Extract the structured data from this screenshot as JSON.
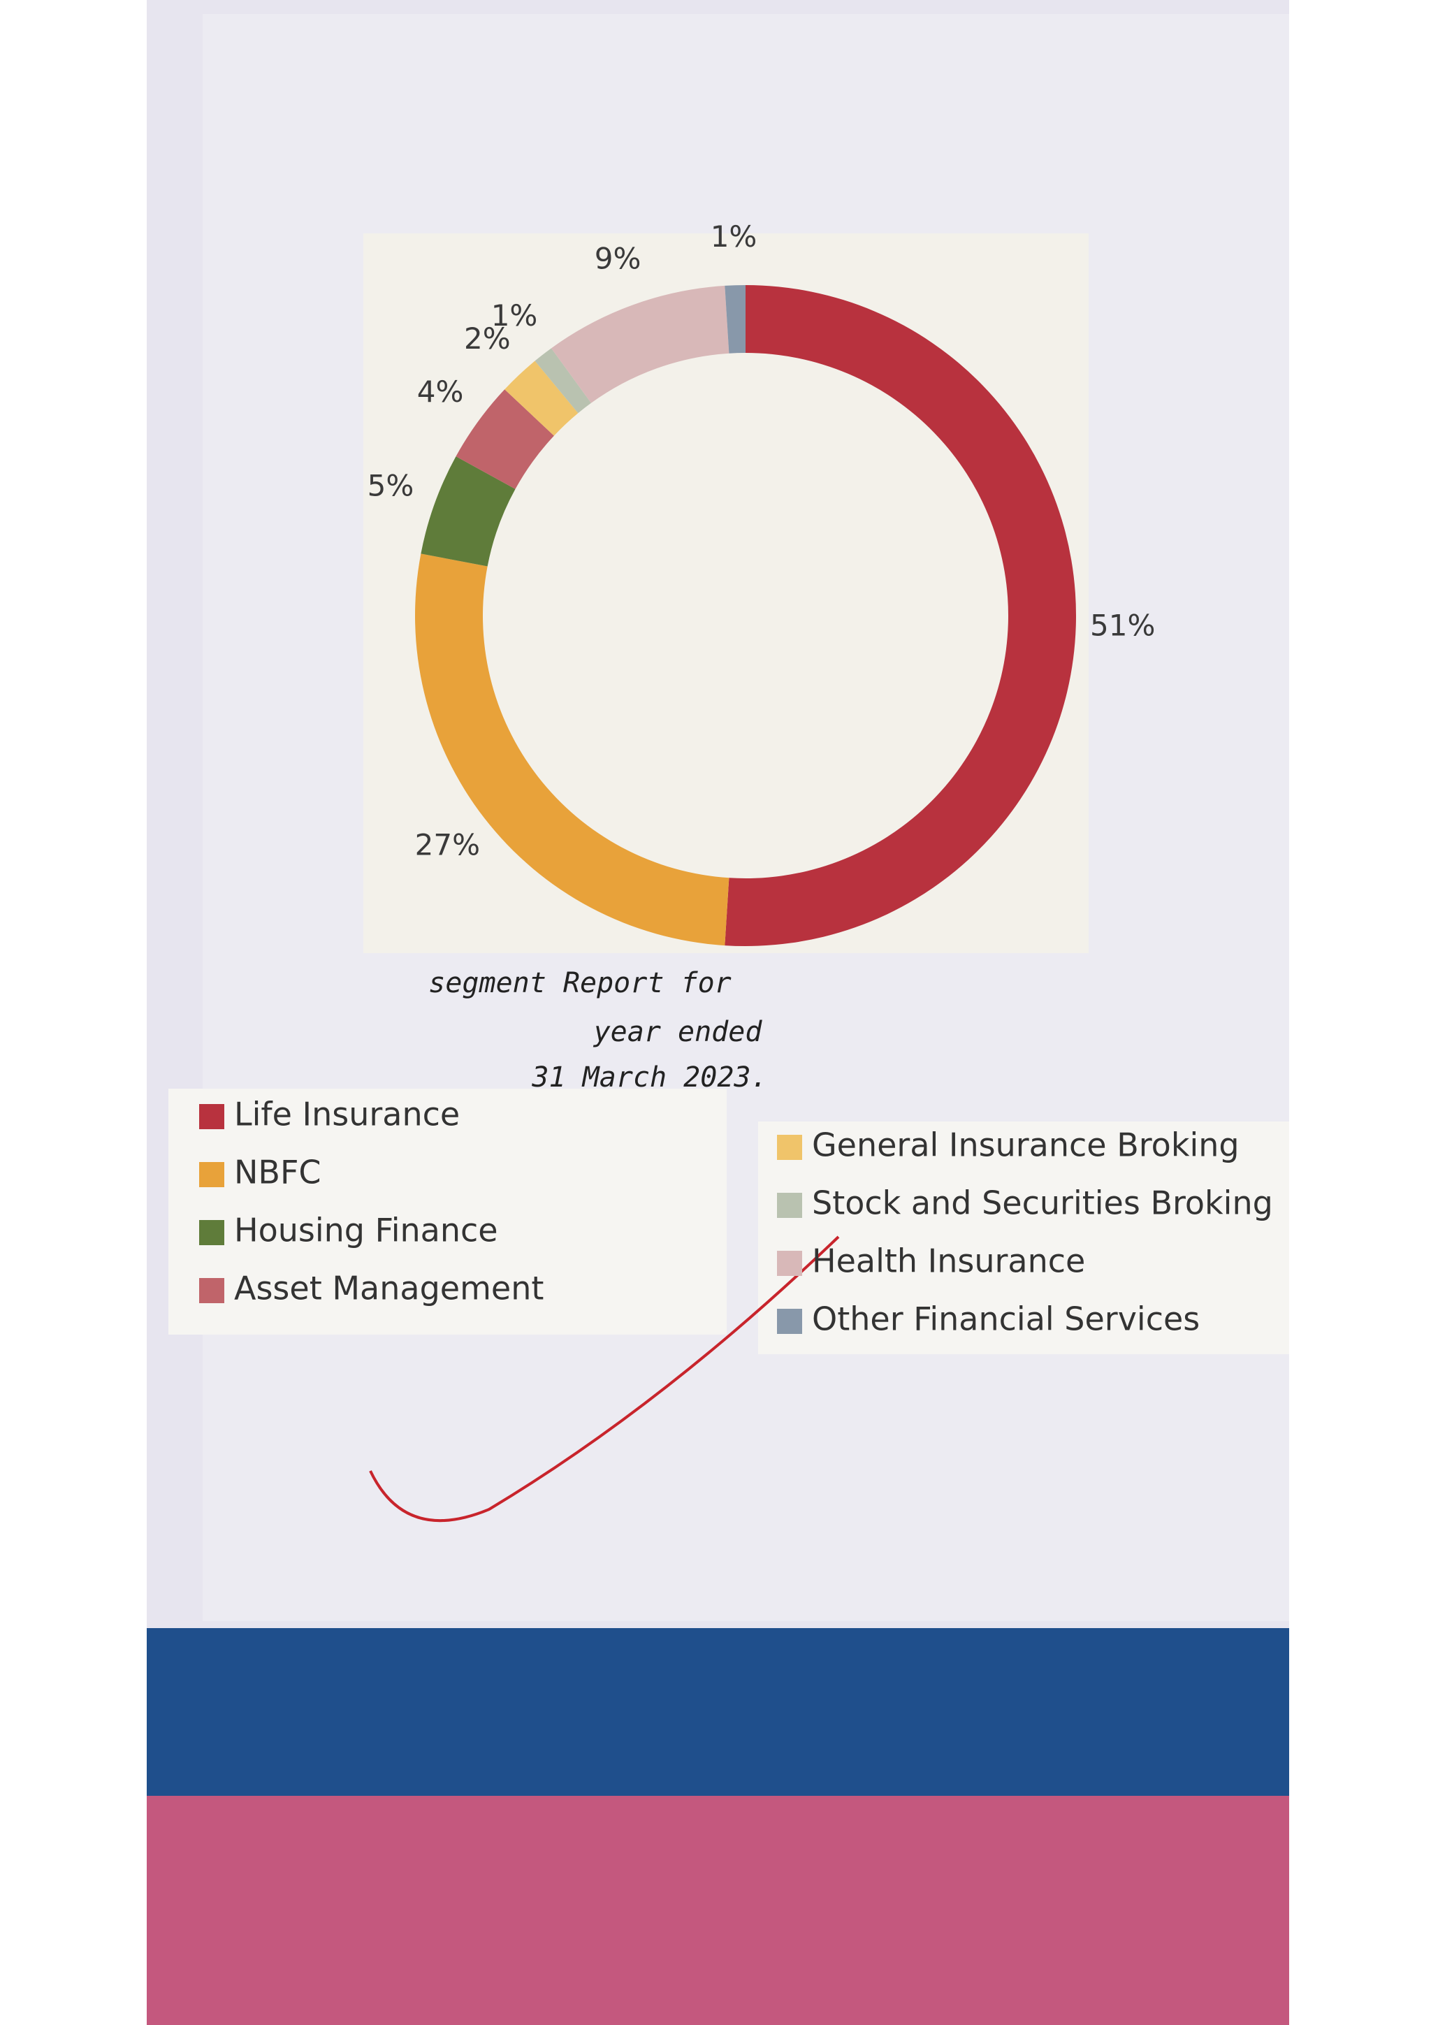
{
  "chart_data": {
    "type": "donut",
    "categories": [
      "Life Insurance",
      "NBFC",
      "Housing Finance",
      "Asset Management",
      "General Insurance Broking",
      "Stock and Securities Broking",
      "Health Insurance",
      "Other Financial Services"
    ],
    "values": [
      51,
      27,
      5,
      4,
      2,
      1,
      9,
      1
    ],
    "value_labels": [
      "51%",
      "27%",
      "5%",
      "4%",
      "2%",
      "1%",
      "9%",
      "1%"
    ],
    "colors": [
      "#b8323e",
      "#e8a23a",
      "#5f7c3a",
      "#c0646a",
      "#f0c46a",
      "#b9c2b0",
      "#d8b8b8",
      "#8898aa"
    ],
    "caption": [
      "segment Report for",
      "year ended",
      "31 March 2023."
    ]
  }
}
